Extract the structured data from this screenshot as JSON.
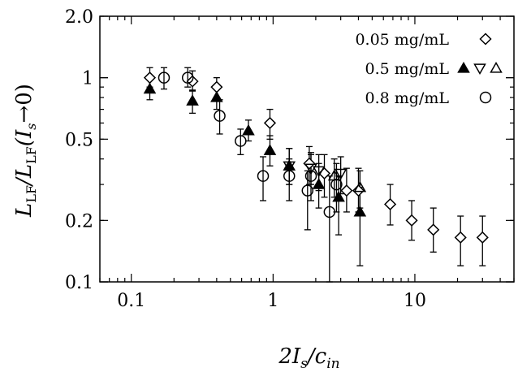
{
  "chart_data": {
    "type": "scatter",
    "x_scale": "log",
    "y_scale": "log",
    "xlim": [
      0.06,
      50
    ],
    "ylim": [
      0.1,
      2.0
    ],
    "x_ticks": [
      {
        "v": 0.1,
        "label": "0.1"
      },
      {
        "v": 1,
        "label": "1"
      },
      {
        "v": 10,
        "label": "10"
      }
    ],
    "y_ticks": [
      {
        "v": 0.1,
        "label": "0.1"
      },
      {
        "v": 0.2,
        "label": "0.2"
      },
      {
        "v": 0.5,
        "label": "0.5"
      },
      {
        "v": 1,
        "label": "1"
      },
      {
        "v": 2.0,
        "label": "2.0"
      }
    ],
    "xlabel": {
      "main": "2I",
      "sub1": "s",
      "slash": "/c",
      "sub2": "in"
    },
    "ylabel": {
      "p1": "L",
      "s1": "LF",
      "p2": "/L",
      "s2": "LF",
      "p3": "(I",
      "s3": "s",
      "p4": "→0)"
    },
    "legend_position": "top-right",
    "legend": [
      {
        "label": "0.05 mg/mL",
        "markers": [
          "diamond-open"
        ]
      },
      {
        "label": "0.5 mg/mL",
        "markers": [
          "triangle-up-filled",
          "triangle-down-open",
          "triangle-up-open"
        ]
      },
      {
        "label": "0.8 mg/mL",
        "markers": [
          "circle-open"
        ]
      }
    ],
    "series": [
      {
        "name": "0.05 mg/mL",
        "marker": "diamond-open",
        "points": [
          {
            "x": 0.135,
            "y": 1.0,
            "lo": 0.9,
            "hi": 1.12
          },
          {
            "x": 0.27,
            "y": 0.96,
            "lo": 0.86,
            "hi": 1.08
          },
          {
            "x": 0.4,
            "y": 0.9,
            "lo": 0.78,
            "hi": 1.0
          },
          {
            "x": 0.95,
            "y": 0.6,
            "lo": 0.5,
            "hi": 0.7
          },
          {
            "x": 1.8,
            "y": 0.38,
            "lo": 0.3,
            "hi": 0.46
          },
          {
            "x": 2.3,
            "y": 0.34,
            "lo": 0.26,
            "hi": 0.42
          },
          {
            "x": 3.3,
            "y": 0.28,
            "lo": 0.22,
            "hi": 0.36
          },
          {
            "x": 4.0,
            "y": 0.28,
            "lo": 0.22,
            "hi": 0.36
          },
          {
            "x": 6.7,
            "y": 0.24,
            "lo": 0.19,
            "hi": 0.3
          },
          {
            "x": 9.5,
            "y": 0.2,
            "lo": 0.16,
            "hi": 0.25
          },
          {
            "x": 13.5,
            "y": 0.18,
            "lo": 0.14,
            "hi": 0.23
          },
          {
            "x": 21.0,
            "y": 0.165,
            "lo": 0.12,
            "hi": 0.21
          },
          {
            "x": 30.0,
            "y": 0.165,
            "lo": 0.12,
            "hi": 0.21
          }
        ]
      },
      {
        "name": "0.5 mg/mL (filled up)",
        "marker": "triangle-up-filled",
        "points": [
          {
            "x": 0.135,
            "y": 0.88,
            "lo": 0.78,
            "hi": 0.98
          },
          {
            "x": 0.27,
            "y": 0.77,
            "lo": 0.67,
            "hi": 0.87
          },
          {
            "x": 0.4,
            "y": 0.8,
            "lo": 0.7,
            "hi": 0.9
          },
          {
            "x": 0.67,
            "y": 0.55,
            "lo": 0.49,
            "hi": 0.62
          },
          {
            "x": 0.95,
            "y": 0.44,
            "lo": 0.37,
            "hi": 0.52
          },
          {
            "x": 1.3,
            "y": 0.37,
            "lo": 0.3,
            "hi": 0.45
          },
          {
            "x": 2.1,
            "y": 0.3,
            "lo": 0.23,
            "hi": 0.38
          },
          {
            "x": 2.9,
            "y": 0.26,
            "lo": 0.17,
            "hi": 0.33
          },
          {
            "x": 4.1,
            "y": 0.22,
            "lo": 0.12,
            "hi": 0.29
          }
        ]
      },
      {
        "name": "0.5 mg/mL (open down)",
        "marker": "triangle-down-open",
        "points": [
          {
            "x": 1.3,
            "y": 0.37,
            "lo": 0.3,
            "hi": 0.45
          },
          {
            "x": 1.85,
            "y": 0.36,
            "lo": 0.3,
            "hi": 0.43
          },
          {
            "x": 2.1,
            "y": 0.35,
            "lo": 0.28,
            "hi": 0.42
          },
          {
            "x": 3.0,
            "y": 0.34,
            "lo": 0.27,
            "hi": 0.41
          }
        ]
      },
      {
        "name": "0.5 mg/mL (open up)",
        "marker": "triangle-up-open",
        "points": [
          {
            "x": 2.7,
            "y": 0.33,
            "lo": 0.26,
            "hi": 0.4
          },
          {
            "x": 4.1,
            "y": 0.29,
            "lo": 0.23,
            "hi": 0.35
          }
        ]
      },
      {
        "name": "0.8 mg/mL",
        "marker": "circle-open",
        "points": [
          {
            "x": 0.17,
            "y": 1.0,
            "lo": 0.88,
            "hi": 1.12
          },
          {
            "x": 0.25,
            "y": 1.0,
            "lo": 0.9,
            "hi": 1.12
          },
          {
            "x": 0.42,
            "y": 0.65,
            "lo": 0.53,
            "hi": 0.78
          },
          {
            "x": 0.59,
            "y": 0.49,
            "lo": 0.42,
            "hi": 0.56
          },
          {
            "x": 0.85,
            "y": 0.33,
            "lo": 0.25,
            "hi": 0.41
          },
          {
            "x": 1.3,
            "y": 0.33,
            "lo": 0.25,
            "hi": 0.4
          },
          {
            "x": 1.75,
            "y": 0.28,
            "lo": 0.18,
            "hi": 0.35
          },
          {
            "x": 1.85,
            "y": 0.33,
            "lo": 0.25,
            "hi": 0.42
          },
          {
            "x": 2.5,
            "y": 0.22,
            "lo": 0.1,
            "hi": 0.33
          },
          {
            "x": 2.8,
            "y": 0.3,
            "lo": 0.22,
            "hi": 0.38
          }
        ]
      }
    ]
  }
}
